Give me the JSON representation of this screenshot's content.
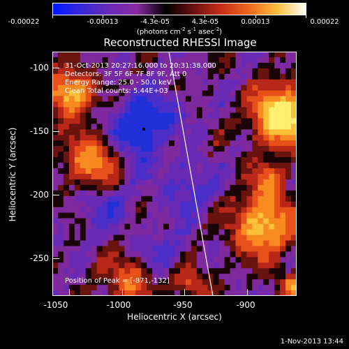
{
  "colorbar": {
    "labels": [
      "-0.00022",
      "-0.00013",
      "-4.3e-05",
      "4.3e-05",
      "0.00013",
      "0.00022"
    ],
    "units_prefix": "(photons cm",
    "units_sup1": "-2",
    "units_mid": " s",
    "units_sup2": "-1",
    "units_mid2": " asec",
    "units_sup3": "-2",
    "units_suffix": ")",
    "colormap": [
      "#0018ff",
      "#3a28d8",
      "#6a2ab8",
      "#8a2aa0",
      "#000000",
      "#6a1010",
      "#c83018",
      "#f06a1c",
      "#fcc040",
      "#ffffff"
    ]
  },
  "title": "Reconstructed RHESSI Image",
  "info": {
    "time": "31-Oct-2013 20:27:16.000 to 20:31:38.000",
    "detectors": "Detectors: 3F 5F 6F 7F 8F 9F, Att 0",
    "energy": "Energy Range: 25.0 - 50.0 keV",
    "clean": "Clean     Total counts: 5.44E+03",
    "peak": "Position of Peak = [-871,-132]"
  },
  "x_axis": {
    "title": "Heliocentric X (arcsec)",
    "ticks": [
      "-1050",
      "-1000",
      "-950",
      "-900"
    ]
  },
  "y_axis": {
    "title": "Heliocentric Y (arcsec)",
    "ticks": [
      "-100",
      "-150",
      "-200",
      "-250"
    ]
  },
  "timestamp": "1-Nov-2013 13:44"
}
